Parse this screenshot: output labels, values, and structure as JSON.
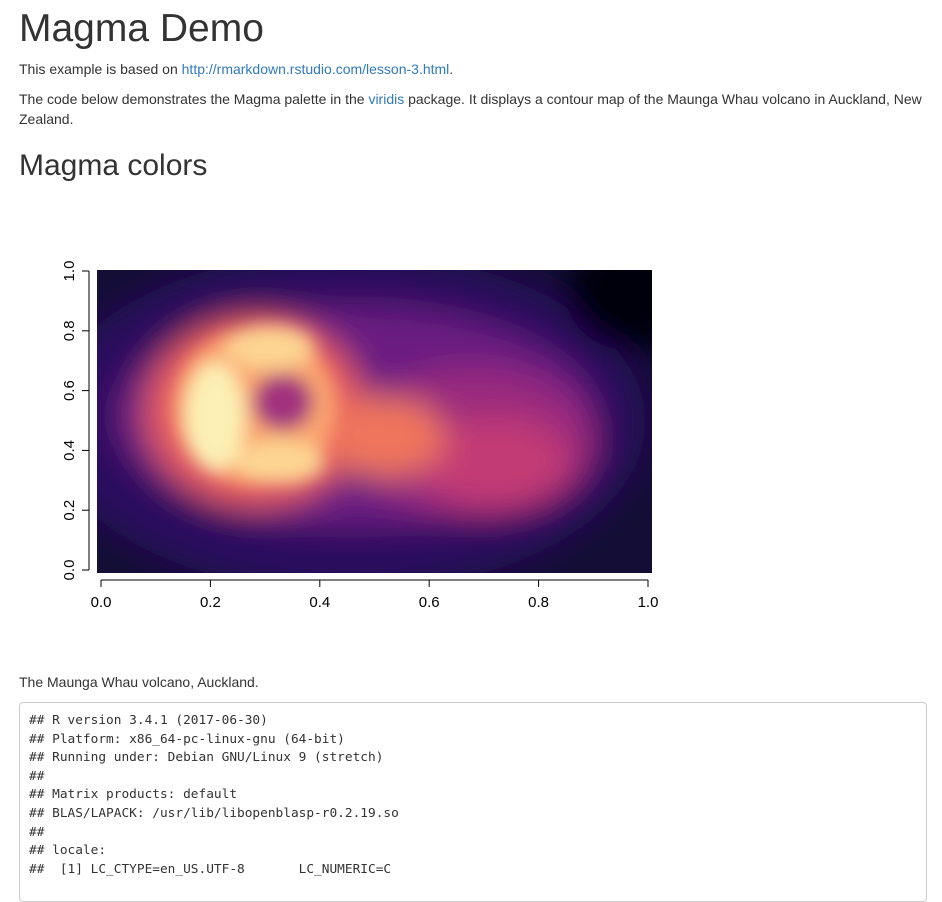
{
  "title": "Magma Demo",
  "intro": {
    "prefix": "This example is based on ",
    "link_text": "http://rmarkdown.rstudio.com/lesson-3.html",
    "suffix": "."
  },
  "description": {
    "prefix": "The code below demonstrates the Magma palette in the ",
    "link_text": "viridis",
    "suffix": " package. It displays a contour map of the Maunga Whau volcano in Auckland, New Zealand."
  },
  "section_heading": "Magma colors",
  "chart_data": {
    "type": "heatmap",
    "palette": "magma",
    "xlim": [
      0,
      1
    ],
    "ylim": [
      0,
      1
    ],
    "x_ticks": [
      "0.0",
      "0.2",
      "0.4",
      "0.6",
      "0.8",
      "1.0"
    ],
    "y_ticks": [
      "0.0",
      "0.2",
      "0.4",
      "0.6",
      "0.8",
      "1.0"
    ],
    "grid": false,
    "legend": "none",
    "colors": {
      "darkest": "#000004",
      "dark_purple": "#3b0f70",
      "purple": "#8c2981",
      "pink": "#de4968",
      "orange": "#fe9f6d",
      "pale_yellow": "#fcfdbf"
    }
  },
  "caption": "The Maunga Whau volcano, Auckland.",
  "code_lines": [
    "## R version 3.4.1 (2017-06-30)",
    "## Platform: x86_64-pc-linux-gnu (64-bit)",
    "## Running under: Debian GNU/Linux 9 (stretch)",
    "##",
    "## Matrix products: default",
    "## BLAS/LAPACK: /usr/lib/libopenblasp-r0.2.19.so",
    "##",
    "## locale:",
    "##  [1] LC_CTYPE=en_US.UTF-8       LC_NUMERIC=C"
  ]
}
